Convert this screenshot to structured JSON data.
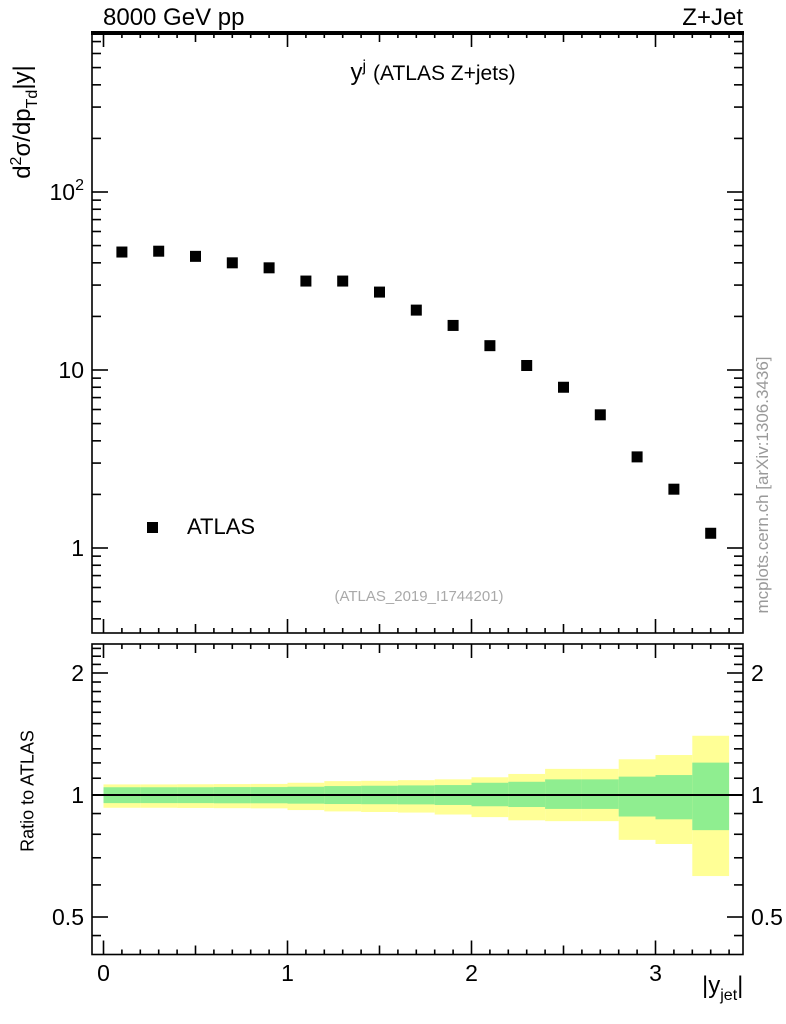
{
  "header": {
    "left": "8000 GeV pp",
    "right": "Z+Jet"
  },
  "title": {
    "base": "y",
    "sup": "j",
    "rest": "(ATLAS Z+jets)"
  },
  "axis_labels": {
    "main_y": {
      "p1": "d",
      "sup": "2",
      "p2": "σ/dp",
      "sub": "Td",
      "p3": "|y|"
    },
    "ratio_y": "Ratio to ATLAS",
    "x": {
      "p1": "|y",
      "sub": "jet",
      "p2": "|"
    }
  },
  "legend": {
    "label": "ATLAS"
  },
  "watermark": "(ATLAS_2019_I1744201)",
  "side_note": "mcplots.cern.ch [arXiv:1306.3436]",
  "colors": {
    "marker": "#000000",
    "band_outer": "#ffff96",
    "band_inner": "#8fee90",
    "frame": "#000000",
    "gray_text": "#999999"
  },
  "chart_data": {
    "type": "scatter",
    "title": "y^j (ATLAS Z+jets)",
    "xlabel": "|y_jet|",
    "x_range": [
      -0.0625,
      3.475
    ],
    "x_ticks": [
      0,
      1,
      2,
      3
    ],
    "x_minor_step": 0.1,
    "x_medium_step": 0.5,
    "main_panel": {
      "ylabel": "d2σ/dp_T d|y|",
      "y_scale": "log",
      "y_range": [
        0.333,
        780
      ],
      "y_ticks": [
        {
          "value": 100,
          "base": "10",
          "sup": "2"
        },
        {
          "value": 10,
          "base": "10",
          "sup": ""
        },
        {
          "value": 1,
          "base": "1",
          "sup": ""
        }
      ],
      "series": [
        {
          "name": "ATLAS",
          "marker": "filled-square",
          "marker_size": 11,
          "x": [
            0.1,
            0.3,
            0.5,
            0.7,
            0.9,
            1.1,
            1.3,
            1.5,
            1.7,
            1.9,
            2.1,
            2.3,
            2.5,
            2.7,
            2.9,
            3.1,
            3.3
          ],
          "y": [
            46,
            46.5,
            43.5,
            40,
            37.5,
            31.6,
            31.6,
            27.4,
            21.7,
            17.8,
            13.7,
            10.6,
            8.0,
            5.6,
            3.25,
            2.14,
            1.21
          ]
        }
      ]
    },
    "ratio_panel": {
      "ylabel": "Ratio to ATLAS",
      "y_scale": "log",
      "y_range": [
        0.404,
        2.36
      ],
      "y_ticks": [
        {
          "value": 2,
          "label": "2"
        },
        {
          "value": 1,
          "label": "1"
        },
        {
          "value": 0.5,
          "label": "0.5"
        }
      ],
      "y_minor_ticks": [
        0.45,
        0.6,
        0.7,
        0.8,
        0.9,
        1.1,
        1.2,
        1.3,
        1.4,
        1.5,
        1.6,
        1.7,
        1.8,
        1.9,
        2.1,
        2.2,
        2.3
      ],
      "reference_line": 1,
      "bin_half_width": 0.1,
      "bands": [
        {
          "x": 0.1,
          "outer": [
            0.93,
            1.062
          ],
          "inner": [
            0.955,
            1.045
          ]
        },
        {
          "x": 0.3,
          "outer": [
            0.93,
            1.062
          ],
          "inner": [
            0.955,
            1.045
          ]
        },
        {
          "x": 0.5,
          "outer": [
            0.929,
            1.063
          ],
          "inner": [
            0.955,
            1.045
          ]
        },
        {
          "x": 0.7,
          "outer": [
            0.928,
            1.064
          ],
          "inner": [
            0.954,
            1.046
          ]
        },
        {
          "x": 0.9,
          "outer": [
            0.927,
            1.065
          ],
          "inner": [
            0.954,
            1.046
          ]
        },
        {
          "x": 1.1,
          "outer": [
            0.918,
            1.072
          ],
          "inner": [
            0.952,
            1.048
          ]
        },
        {
          "x": 1.3,
          "outer": [
            0.911,
            1.082
          ],
          "inner": [
            0.95,
            1.052
          ]
        },
        {
          "x": 1.5,
          "outer": [
            0.908,
            1.084
          ],
          "inner": [
            0.949,
            1.054
          ]
        },
        {
          "x": 1.7,
          "outer": [
            0.905,
            1.088
          ],
          "inner": [
            0.948,
            1.056
          ]
        },
        {
          "x": 1.9,
          "outer": [
            0.895,
            1.093
          ],
          "inner": [
            0.945,
            1.058
          ]
        },
        {
          "x": 2.1,
          "outer": [
            0.882,
            1.106
          ],
          "inner": [
            0.938,
            1.072
          ]
        },
        {
          "x": 2.3,
          "outer": [
            0.866,
            1.127
          ],
          "inner": [
            0.934,
            1.078
          ]
        },
        {
          "x": 2.5,
          "outer": [
            0.862,
            1.16
          ],
          "inner": [
            0.924,
            1.093
          ]
        },
        {
          "x": 2.7,
          "outer": [
            0.862,
            1.16
          ],
          "inner": [
            0.924,
            1.093
          ]
        },
        {
          "x": 2.9,
          "outer": [
            0.775,
            1.225
          ],
          "inner": [
            0.885,
            1.11
          ]
        },
        {
          "x": 3.1,
          "outer": [
            0.757,
            1.255
          ],
          "inner": [
            0.871,
            1.12
          ]
        },
        {
          "x": 3.3,
          "outer": [
            0.631,
            1.4
          ],
          "inner": [
            0.819,
            1.202
          ]
        }
      ]
    }
  }
}
